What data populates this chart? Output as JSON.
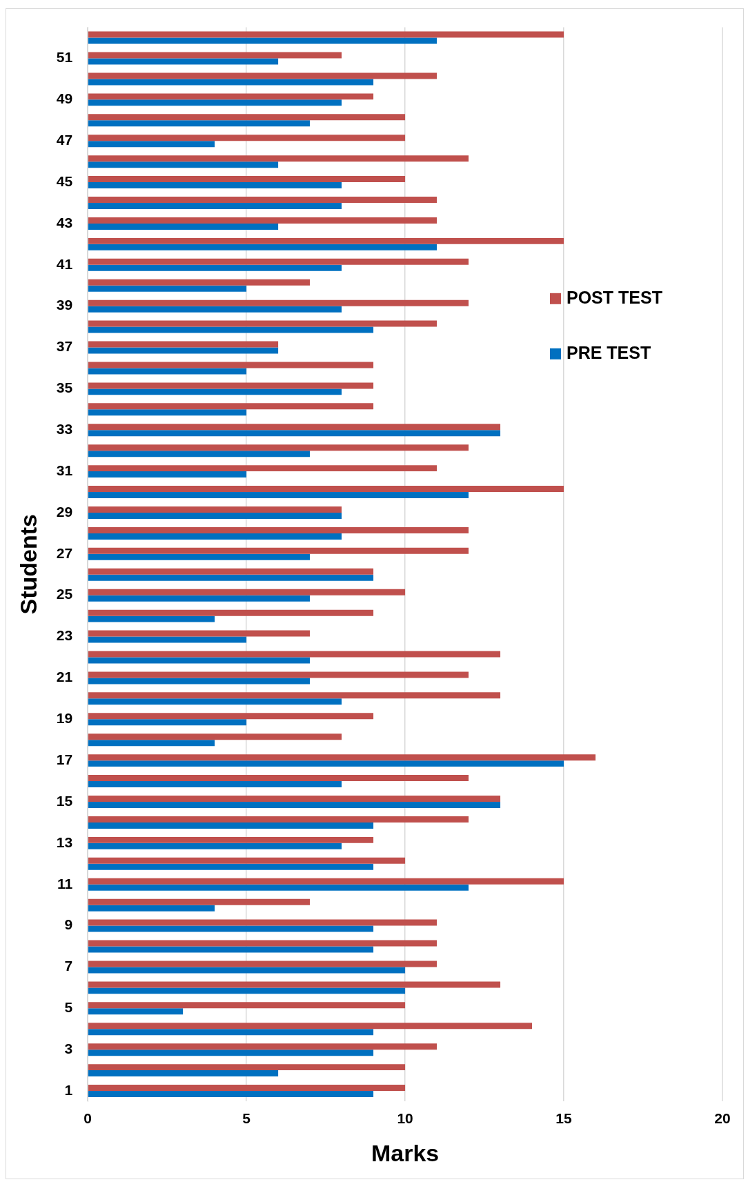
{
  "chart_data": {
    "type": "bar",
    "orientation": "horizontal",
    "xlabel": "Marks",
    "ylabel": "Students",
    "categories": [
      null,
      "51",
      null,
      "49",
      null,
      "47",
      null,
      "45",
      null,
      "43",
      null,
      "41",
      null,
      "39",
      null,
      "37",
      null,
      "35",
      null,
      "33",
      null,
      "31",
      null,
      "29",
      null,
      "27",
      null,
      "25",
      null,
      "23",
      null,
      "21",
      null,
      "19",
      null,
      "17",
      null,
      "15",
      null,
      "13",
      null,
      "11",
      null,
      "9",
      null,
      "7",
      null,
      "5",
      null,
      "3",
      null,
      "1"
    ],
    "series": [
      {
        "name": "POST TEST",
        "color": "#c0504d",
        "values": [
          15,
          8,
          11,
          9,
          10,
          10,
          12,
          10,
          11,
          11,
          15,
          12,
          7,
          12,
          11,
          6,
          9,
          9,
          9,
          13,
          12,
          11,
          15,
          8,
          12,
          12,
          9,
          10,
          9,
          7,
          13,
          12,
          13,
          9,
          8,
          16,
          12,
          13,
          12,
          9,
          10,
          15,
          7,
          11,
          11,
          11,
          13,
          10,
          14,
          11,
          10,
          10
        ]
      },
      {
        "name": "PRE TEST",
        "color": "#0070c0",
        "values": [
          11,
          6,
          9,
          8,
          7,
          4,
          6,
          8,
          8,
          6,
          11,
          8,
          5,
          8,
          9,
          6,
          5,
          8,
          5,
          13,
          7,
          5,
          12,
          8,
          8,
          7,
          9,
          7,
          4,
          5,
          7,
          7,
          8,
          5,
          4,
          15,
          8,
          13,
          9,
          8,
          9,
          12,
          4,
          9,
          9,
          10,
          10,
          3,
          9,
          9,
          6,
          9
        ]
      }
    ],
    "xlim": [
      0,
      20
    ],
    "xticks": [
      0,
      5,
      10,
      15,
      20
    ],
    "grid": "x",
    "legend": "right"
  }
}
